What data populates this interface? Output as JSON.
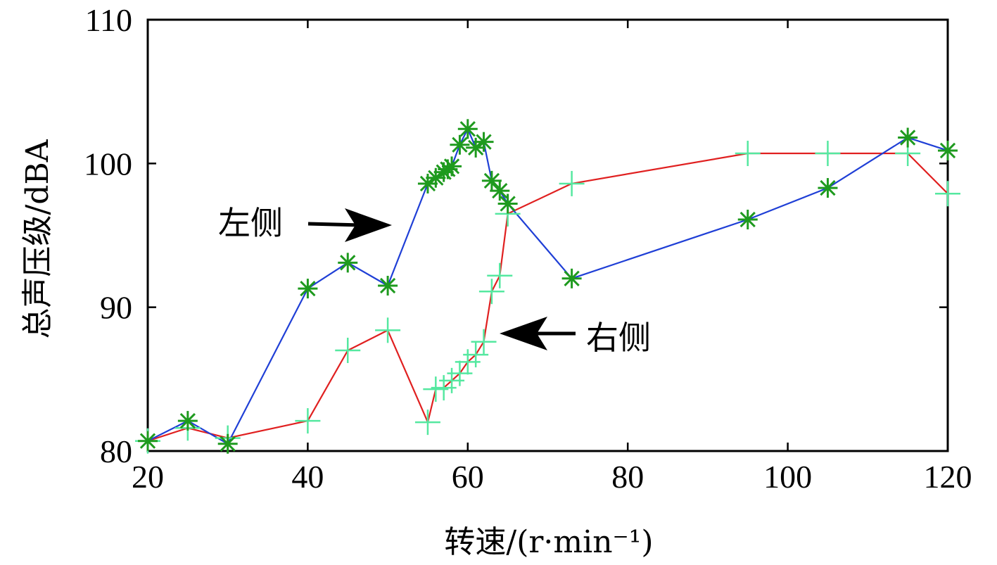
{
  "chart_data": {
    "type": "line",
    "title": "",
    "xlabel": "转速/(r·min⁻¹)",
    "ylabel": "总声压级/dBA",
    "xlim": [
      20,
      120
    ],
    "ylim": [
      80,
      110
    ],
    "xticks": [
      20,
      40,
      60,
      80,
      100,
      120
    ],
    "yticks": [
      80,
      90,
      100,
      110
    ],
    "xtick_labels": [
      "20",
      "40",
      "60",
      "80",
      "100",
      "120"
    ],
    "ytick_labels": [
      "80",
      "90",
      "100",
      "110"
    ],
    "grid": false,
    "series": [
      {
        "name": "左侧",
        "line_color": "#1f3fd6",
        "marker": "asterisk",
        "marker_color": "#1e9a1e",
        "x": [
          20,
          25,
          30,
          40,
          45,
          50,
          55,
          56,
          57,
          57.5,
          58,
          59,
          60,
          61,
          62,
          63,
          64,
          65,
          73,
          95,
          105,
          115,
          120
        ],
        "y": [
          80.7,
          82.1,
          80.5,
          91.3,
          93.1,
          91.5,
          98.6,
          99.0,
          99.4,
          99.6,
          99.8,
          101.3,
          102.4,
          101.1,
          101.5,
          98.8,
          98.1,
          97.2,
          92.0,
          96.1,
          98.3,
          101.8,
          100.9
        ]
      },
      {
        "name": "右侧",
        "line_color": "#e02020",
        "marker": "plus",
        "marker_color": "#55e8a0",
        "x": [
          20,
          25,
          30,
          40,
          45,
          50,
          55,
          56,
          57,
          58,
          59,
          60,
          61,
          62,
          63,
          64,
          65,
          73,
          95,
          105,
          115,
          120
        ],
        "y": [
          80.7,
          81.6,
          80.9,
          82.1,
          87.0,
          88.4,
          82.0,
          84.3,
          84.4,
          84.9,
          85.4,
          86.2,
          86.7,
          87.6,
          91.1,
          92.2,
          96.5,
          98.6,
          100.7,
          100.7,
          100.7,
          97.9
        ]
      }
    ],
    "annotations": [
      {
        "text": "左侧"
      },
      {
        "text": "右侧"
      }
    ]
  }
}
